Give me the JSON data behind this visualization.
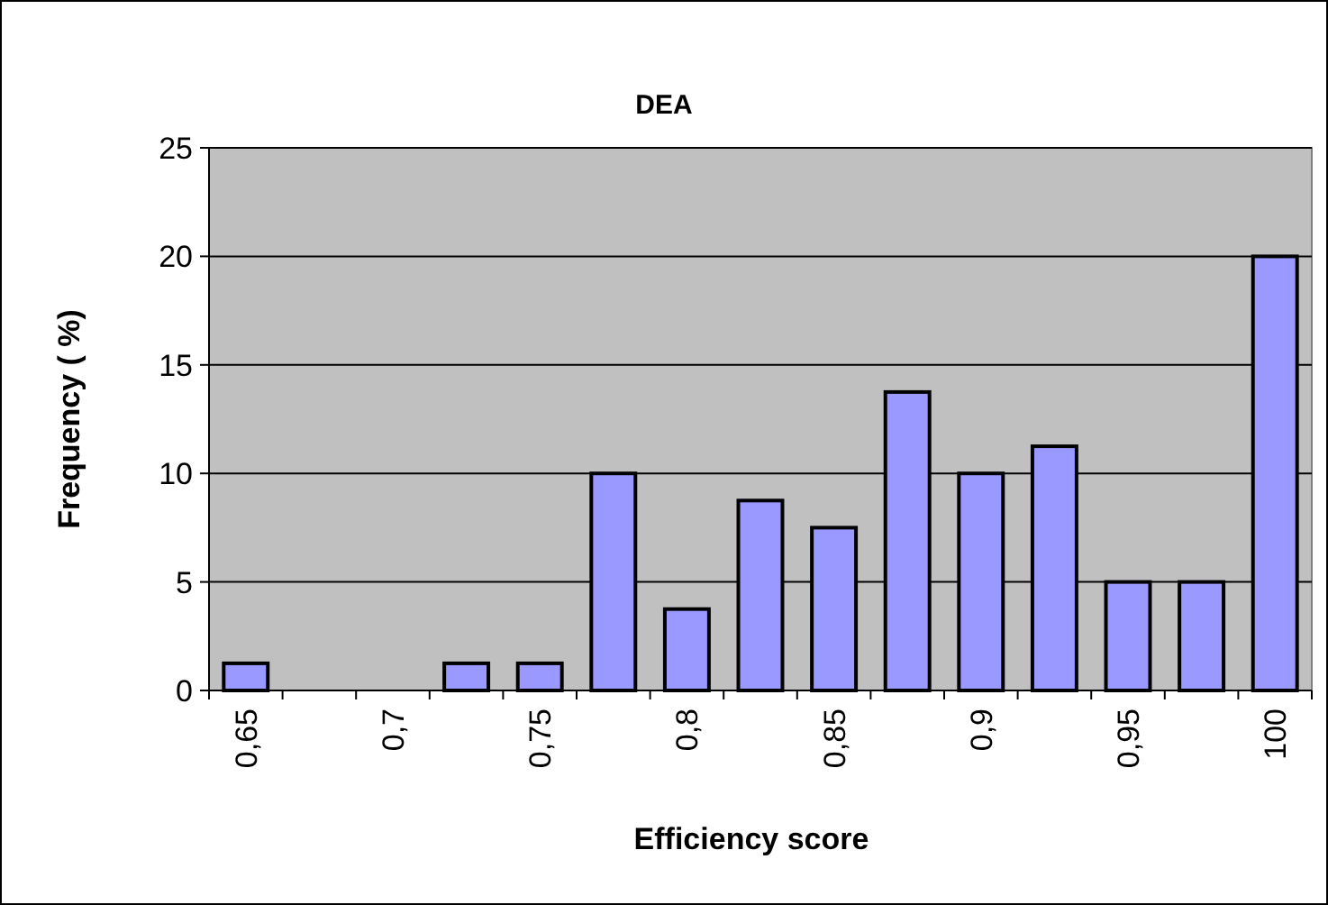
{
  "chart_data": {
    "type": "bar",
    "title": "DEA",
    "xlabel": "Efficiency score",
    "ylabel": "Frequency ( %)",
    "categories": [
      "0,65",
      null,
      "0,7",
      null,
      "0,75",
      null,
      "0,8",
      null,
      "0,85",
      null,
      "0,9",
      null,
      "0,95",
      null,
      "100"
    ],
    "values": [
      1.25,
      0,
      0,
      1.25,
      1.25,
      10,
      3.75,
      8.75,
      7.5,
      13.75,
      10,
      11.25,
      5,
      5,
      20
    ],
    "color": "#9999ff",
    "ylim": [
      0,
      25
    ],
    "yticks": [
      0,
      5,
      10,
      15,
      20,
      25
    ],
    "grid": "y"
  }
}
